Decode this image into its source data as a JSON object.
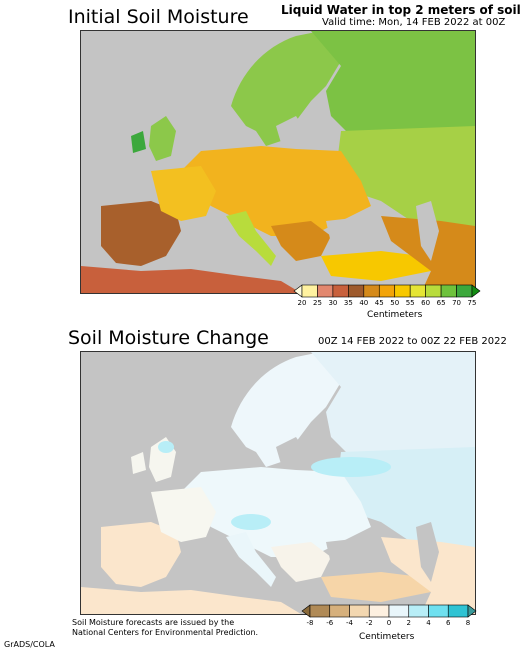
{
  "panel1": {
    "title": "Initial Soil Moisture",
    "subtitle": "Liquid Water in top 2 meters of soil",
    "valid_time": "Valid time: Mon, 14 FEB 2022 at 00Z",
    "colorbar": {
      "title": "Centimeters",
      "ticks": [
        "20",
        "25",
        "30",
        "35",
        "40",
        "45",
        "50",
        "55",
        "60",
        "65",
        "70",
        "75"
      ],
      "colors": [
        "#fffde0",
        "#fff2a0",
        "#e2876e",
        "#c8603c",
        "#9e5a2c",
        "#d58a1a",
        "#f2a40a",
        "#f7c800",
        "#e5e535",
        "#b8dc3c",
        "#6ec23c",
        "#3ca83c",
        "#138c13"
      ]
    }
  },
  "panel2": {
    "title": "Soil Moisture Change",
    "valid_range": "00Z 14 FEB 2022 to 00Z 22 FEB 2022",
    "colorbar": {
      "title": "Centimeters",
      "ticks": [
        "-8",
        "-6",
        "-4",
        "-2",
        "0",
        "2",
        "4",
        "6",
        "8"
      ],
      "colors": [
        "#8a6a3a",
        "#b08a56",
        "#d6b07c",
        "#f3d7b0",
        "#fdf0e0",
        "#e9f6fb",
        "#b8eef7",
        "#6fe0ef",
        "#2fc3d3",
        "#3a9a9a"
      ]
    }
  },
  "footer": {
    "note_line1": "Soil Moisture forecasts are issued by the",
    "note_line2": "National Centers for Environmental Prediction.",
    "credit": "GrADS/COLA"
  }
}
